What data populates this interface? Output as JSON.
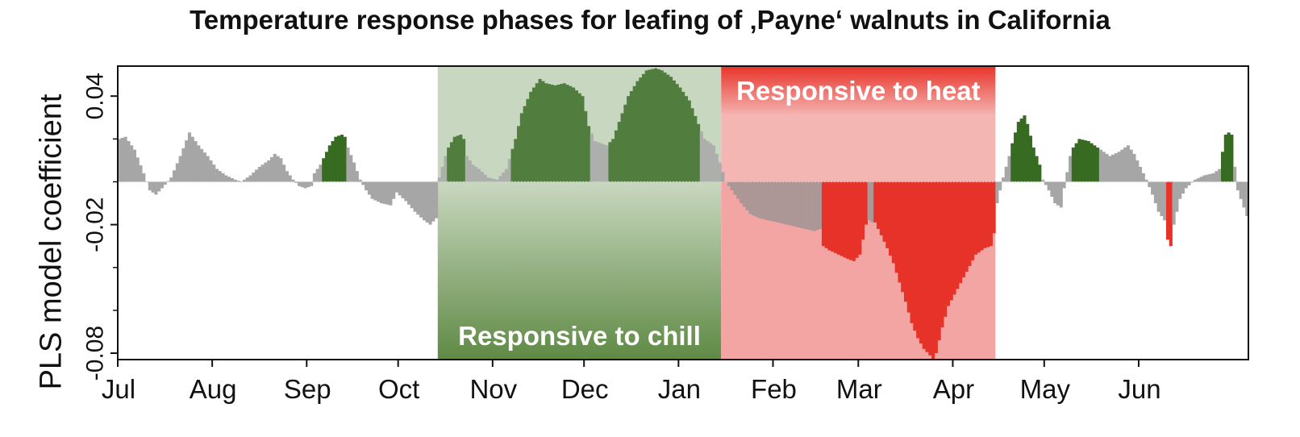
{
  "chart_data": {
    "type": "bar",
    "title": "Temperature response phases for leafing of ‚Payne‘ walnuts in California",
    "xlabel": "",
    "ylabel": "PLS model coefficient",
    "ylim": [
      -0.083,
      0.054
    ],
    "y_ticks": [
      "0.04",
      "-0.02",
      "-0.08"
    ],
    "x_ticks": [
      "Jul",
      "Aug",
      "Sep",
      "Oct",
      "Nov",
      "Dec",
      "Jan",
      "Feb",
      "Mar",
      "Apr",
      "May",
      "Jun"
    ],
    "phases": [
      {
        "label": "Responsive to chill",
        "start_day": 105,
        "end_day": 198
      },
      {
        "label": "Responsive to heat",
        "start_day": 198,
        "end_day": 288
      }
    ],
    "colors": {
      "neutral": "#a6a6a6",
      "positive_important": "#376b21",
      "negative_important": "#e8332a",
      "chill_band": "#c9d8c0",
      "chill_band_dark": "#5f8a45",
      "heat_band": "#e8332a",
      "heat_band_light": "#f4b6b3",
      "zero_line": "#cccccc"
    },
    "series_nodes": [
      [
        0,
        0.02,
        0
      ],
      [
        2,
        0.021,
        0
      ],
      [
        5,
        0.015,
        0
      ],
      [
        8,
        0.004,
        0
      ],
      [
        10,
        -0.004,
        0
      ],
      [
        12,
        -0.006,
        0
      ],
      [
        14,
        -0.003,
        0
      ],
      [
        17,
        0.002,
        0
      ],
      [
        20,
        0.012,
        0
      ],
      [
        23,
        0.023,
        0
      ],
      [
        26,
        0.017,
        0
      ],
      [
        29,
        0.012,
        0
      ],
      [
        32,
        0.006,
        0
      ],
      [
        35,
        0.003,
        0
      ],
      [
        38,
        0.001,
        0
      ],
      [
        40,
        0.0,
        0
      ],
      [
        43,
        0.003,
        0
      ],
      [
        46,
        0.007,
        0
      ],
      [
        49,
        0.01,
        0
      ],
      [
        51,
        0.013,
        0
      ],
      [
        53,
        0.011,
        0
      ],
      [
        55,
        0.005,
        0
      ],
      [
        57,
        0.001,
        0
      ],
      [
        59,
        -0.002,
        0
      ],
      [
        61,
        -0.003,
        0
      ],
      [
        63,
        -0.002,
        0
      ],
      [
        64,
        0.004,
        0
      ],
      [
        66,
        0.008,
        0
      ],
      [
        67,
        0.011,
        1
      ],
      [
        69,
        0.017,
        1
      ],
      [
        71,
        0.021,
        1
      ],
      [
        73,
        0.022,
        1
      ],
      [
        74,
        0.021,
        1
      ],
      [
        75,
        0.016,
        0
      ],
      [
        77,
        0.009,
        0
      ],
      [
        79,
        0.001,
        0
      ],
      [
        81,
        -0.004,
        0
      ],
      [
        83,
        -0.008,
        0
      ],
      [
        86,
        -0.01,
        0
      ],
      [
        89,
        -0.011,
        0
      ],
      [
        91,
        -0.005,
        0
      ],
      [
        94,
        -0.009,
        0
      ],
      [
        97,
        -0.014,
        0
      ],
      [
        100,
        -0.018,
        0
      ],
      [
        102,
        -0.02,
        0
      ],
      [
        104,
        -0.017,
        0
      ],
      [
        105,
        0.002,
        0
      ],
      [
        107,
        0.012,
        0
      ],
      [
        108,
        0.016,
        1
      ],
      [
        110,
        0.021,
        1
      ],
      [
        112,
        0.022,
        1
      ],
      [
        113,
        0.02,
        1
      ],
      [
        114,
        0.012,
        0
      ],
      [
        116,
        0.008,
        0
      ],
      [
        118,
        0.006,
        0
      ],
      [
        121,
        0.002,
        0
      ],
      [
        124,
        0.001,
        0
      ],
      [
        127,
        0.006,
        0
      ],
      [
        130,
        0.02,
        1
      ],
      [
        132,
        0.032,
        1
      ],
      [
        135,
        0.042,
        1
      ],
      [
        138,
        0.048,
        1
      ],
      [
        140,
        0.046,
        1
      ],
      [
        143,
        0.045,
        1
      ],
      [
        146,
        0.046,
        1
      ],
      [
        149,
        0.044,
        1
      ],
      [
        152,
        0.04,
        1
      ],
      [
        154,
        0.026,
        1
      ],
      [
        156,
        0.019,
        0
      ],
      [
        158,
        0.018,
        0
      ],
      [
        160,
        0.017,
        0
      ],
      [
        162,
        0.02,
        1
      ],
      [
        164,
        0.028,
        1
      ],
      [
        167,
        0.04,
        1
      ],
      [
        170,
        0.047,
        1
      ],
      [
        173,
        0.052,
        1
      ],
      [
        176,
        0.053,
        1
      ],
      [
        178,
        0.052,
        1
      ],
      [
        181,
        0.049,
        1
      ],
      [
        184,
        0.044,
        1
      ],
      [
        187,
        0.038,
        1
      ],
      [
        190,
        0.027,
        1
      ],
      [
        192,
        0.02,
        0
      ],
      [
        195,
        0.017,
        0
      ],
      [
        197,
        0.009,
        0
      ],
      [
        199,
        0.0,
        0
      ],
      [
        201,
        -0.004,
        0
      ],
      [
        204,
        -0.01,
        0
      ],
      [
        207,
        -0.015,
        0
      ],
      [
        210,
        -0.017,
        0
      ],
      [
        213,
        -0.018,
        0
      ],
      [
        216,
        -0.019,
        0
      ],
      [
        219,
        -0.02,
        0
      ],
      [
        222,
        -0.021,
        0
      ],
      [
        225,
        -0.022,
        0
      ],
      [
        228,
        -0.023,
        0
      ],
      [
        230,
        -0.022,
        0
      ],
      [
        231,
        -0.03,
        2
      ],
      [
        233,
        -0.032,
        2
      ],
      [
        236,
        -0.034,
        2
      ],
      [
        239,
        -0.036,
        2
      ],
      [
        241,
        -0.037,
        2
      ],
      [
        243,
        -0.034,
        2
      ],
      [
        245,
        -0.02,
        2
      ],
      [
        246,
        -0.018,
        0
      ],
      [
        247,
        -0.019,
        0
      ],
      [
        248,
        -0.019,
        2
      ],
      [
        250,
        -0.025,
        2
      ],
      [
        252,
        -0.031,
        2
      ],
      [
        254,
        -0.038,
        2
      ],
      [
        256,
        -0.047,
        2
      ],
      [
        258,
        -0.056,
        2
      ],
      [
        260,
        -0.066,
        2
      ],
      [
        262,
        -0.073,
        2
      ],
      [
        264,
        -0.078,
        2
      ],
      [
        266,
        -0.081,
        2
      ],
      [
        267,
        -0.083,
        2
      ],
      [
        268,
        -0.08,
        2
      ],
      [
        270,
        -0.068,
        2
      ],
      [
        272,
        -0.058,
        2
      ],
      [
        275,
        -0.05,
        2
      ],
      [
        278,
        -0.042,
        2
      ],
      [
        281,
        -0.034,
        2
      ],
      [
        284,
        -0.031,
        2
      ],
      [
        286,
        -0.03,
        2
      ],
      [
        287,
        -0.024,
        2
      ],
      [
        288,
        -0.01,
        0
      ],
      [
        290,
        0.002,
        0
      ],
      [
        292,
        0.012,
        0
      ],
      [
        293,
        0.018,
        1
      ],
      [
        295,
        0.028,
        1
      ],
      [
        297,
        0.031,
        1
      ],
      [
        298,
        0.027,
        1
      ],
      [
        300,
        0.016,
        1
      ],
      [
        302,
        0.008,
        1
      ],
      [
        303,
        0.001,
        0
      ],
      [
        305,
        -0.004,
        0
      ],
      [
        307,
        -0.01,
        0
      ],
      [
        309,
        -0.012,
        0
      ],
      [
        310,
        -0.003,
        0
      ],
      [
        312,
        0.012,
        0
      ],
      [
        313,
        0.016,
        1
      ],
      [
        315,
        0.02,
        1
      ],
      [
        318,
        0.019,
        1
      ],
      [
        321,
        0.016,
        1
      ],
      [
        322,
        0.015,
        0
      ],
      [
        325,
        0.012,
        0
      ],
      [
        328,
        0.014,
        0
      ],
      [
        331,
        0.017,
        0
      ],
      [
        333,
        0.013,
        0
      ],
      [
        335,
        0.007,
        0
      ],
      [
        337,
        0.001,
        0
      ],
      [
        339,
        -0.006,
        0
      ],
      [
        341,
        -0.014,
        0
      ],
      [
        343,
        -0.018,
        0
      ],
      [
        344,
        -0.027,
        2
      ],
      [
        345,
        -0.03,
        2
      ],
      [
        346,
        -0.02,
        0
      ],
      [
        348,
        -0.008,
        0
      ],
      [
        350,
        -0.003,
        0
      ],
      [
        353,
        0.001,
        0
      ],
      [
        356,
        0.003,
        0
      ],
      [
        359,
        0.004,
        0
      ],
      [
        361,
        0.006,
        0
      ],
      [
        363,
        0.022,
        1
      ],
      [
        364,
        0.023,
        1
      ],
      [
        365,
        0.022,
        1
      ],
      [
        366,
        0.007,
        0
      ],
      [
        367,
        -0.004,
        0
      ],
      [
        369,
        -0.012,
        0
      ],
      [
        370,
        -0.016,
        0
      ]
    ]
  }
}
